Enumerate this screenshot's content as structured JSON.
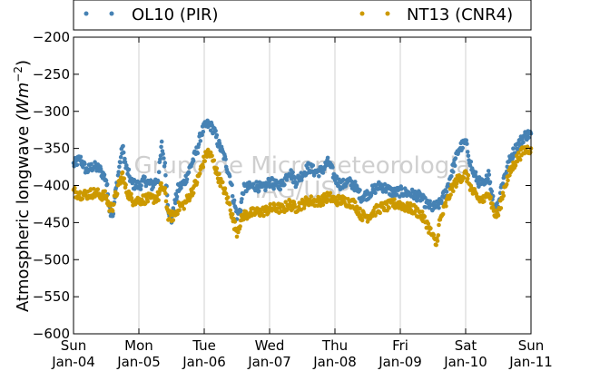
{
  "chart_data": {
    "type": "scatter",
    "ylabel": "Atmospheric longwave",
    "ylabel_unit": "(Wm",
    "ylabel_exp": "−2",
    "ylabel_close": ")",
    "ylim": [
      -600,
      -200
    ],
    "yticks": [
      -200,
      -250,
      -300,
      -350,
      -400,
      -450,
      -500,
      -550,
      -600
    ],
    "yticks_labels": [
      "−200",
      "−250",
      "−300",
      "−350",
      "−400",
      "−450",
      "−500",
      "−550",
      "−600"
    ],
    "xlim": [
      0,
      7
    ],
    "xticks": [
      {
        "x": 0,
        "day": "Sun",
        "date": "Jan-04"
      },
      {
        "x": 1,
        "day": "Mon",
        "date": "Jan-05"
      },
      {
        "x": 2,
        "day": "Tue",
        "date": "Jan-06"
      },
      {
        "x": 3,
        "day": "Wed",
        "date": "Jan-07"
      },
      {
        "x": 4,
        "day": "Thu",
        "date": "Jan-08"
      },
      {
        "x": 5,
        "day": "Fri",
        "date": "Jan-09"
      },
      {
        "x": 6,
        "day": "Sat",
        "date": "Jan-10"
      },
      {
        "x": 7,
        "day": "Sun",
        "date": "Jan-11"
      }
    ],
    "grid": "vertical",
    "legend_position": "top",
    "watermark": {
      "line1": "Grupo de Micrometeorologia",
      "line2": "IAG/USP"
    },
    "series": [
      {
        "name": "OL10 (PIR)",
        "color": "#4682b4",
        "points": [
          [
            0.0,
            -372
          ],
          [
            0.1,
            -364
          ],
          [
            0.2,
            -380
          ],
          [
            0.3,
            -374
          ],
          [
            0.4,
            -378
          ],
          [
            0.5,
            -392
          ],
          [
            0.55,
            -430
          ],
          [
            0.6,
            -440
          ],
          [
            0.65,
            -405
          ],
          [
            0.7,
            -375
          ],
          [
            0.75,
            -348
          ],
          [
            0.8,
            -375
          ],
          [
            0.9,
            -398
          ],
          [
            1.0,
            -400
          ],
          [
            1.1,
            -393
          ],
          [
            1.2,
            -400
          ],
          [
            1.3,
            -390
          ],
          [
            1.35,
            -345
          ],
          [
            1.4,
            -375
          ],
          [
            1.45,
            -430
          ],
          [
            1.5,
            -448
          ],
          [
            1.55,
            -425
          ],
          [
            1.6,
            -405
          ],
          [
            1.7,
            -395
          ],
          [
            1.8,
            -372
          ],
          [
            1.9,
            -350
          ],
          [
            1.95,
            -330
          ],
          [
            2.0,
            -322
          ],
          [
            2.05,
            -318
          ],
          [
            2.1,
            -320
          ],
          [
            2.15,
            -325
          ],
          [
            2.2,
            -340
          ],
          [
            2.3,
            -360
          ],
          [
            2.4,
            -390
          ],
          [
            2.45,
            -420
          ],
          [
            2.5,
            -440
          ],
          [
            2.55,
            -433
          ],
          [
            2.6,
            -405
          ],
          [
            2.7,
            -402
          ],
          [
            2.8,
            -400
          ],
          [
            2.9,
            -405
          ],
          [
            3.0,
            -395
          ],
          [
            3.1,
            -400
          ],
          [
            3.2,
            -398
          ],
          [
            3.3,
            -380
          ],
          [
            3.4,
            -395
          ],
          [
            3.5,
            -385
          ],
          [
            3.6,
            -375
          ],
          [
            3.7,
            -382
          ],
          [
            3.8,
            -380
          ],
          [
            3.9,
            -368
          ],
          [
            4.0,
            -390
          ],
          [
            4.1,
            -400
          ],
          [
            4.2,
            -395
          ],
          [
            4.3,
            -400
          ],
          [
            4.4,
            -415
          ],
          [
            4.5,
            -412
          ],
          [
            4.6,
            -405
          ],
          [
            4.7,
            -400
          ],
          [
            4.8,
            -405
          ],
          [
            4.9,
            -410
          ],
          [
            5.0,
            -408
          ],
          [
            5.1,
            -410
          ],
          [
            5.2,
            -412
          ],
          [
            5.3,
            -415
          ],
          [
            5.4,
            -425
          ],
          [
            5.5,
            -430
          ],
          [
            5.6,
            -425
          ],
          [
            5.7,
            -408
          ],
          [
            5.8,
            -378
          ],
          [
            5.9,
            -350
          ],
          [
            6.0,
            -342
          ],
          [
            6.05,
            -360
          ],
          [
            6.1,
            -380
          ],
          [
            6.2,
            -395
          ],
          [
            6.3,
            -400
          ],
          [
            6.35,
            -380
          ],
          [
            6.4,
            -412
          ],
          [
            6.45,
            -430
          ],
          [
            6.5,
            -425
          ],
          [
            6.55,
            -400
          ],
          [
            6.6,
            -385
          ],
          [
            6.7,
            -360
          ],
          [
            6.8,
            -345
          ],
          [
            6.9,
            -333
          ],
          [
            7.0,
            -330
          ]
        ]
      },
      {
        "name": "NT13 (CNR4)",
        "color": "#cc9900",
        "points": [
          [
            0.0,
            -408
          ],
          [
            0.1,
            -412
          ],
          [
            0.2,
            -412
          ],
          [
            0.3,
            -410
          ],
          [
            0.4,
            -412
          ],
          [
            0.5,
            -415
          ],
          [
            0.55,
            -430
          ],
          [
            0.6,
            -428
          ],
          [
            0.65,
            -412
          ],
          [
            0.7,
            -398
          ],
          [
            0.75,
            -385
          ],
          [
            0.8,
            -405
          ],
          [
            0.9,
            -420
          ],
          [
            1.0,
            -420
          ],
          [
            1.1,
            -418
          ],
          [
            1.2,
            -418
          ],
          [
            1.3,
            -415
          ],
          [
            1.35,
            -400
          ],
          [
            1.4,
            -410
          ],
          [
            1.45,
            -440
          ],
          [
            1.5,
            -442
          ],
          [
            1.55,
            -440
          ],
          [
            1.6,
            -430
          ],
          [
            1.7,
            -425
          ],
          [
            1.8,
            -410
          ],
          [
            1.9,
            -392
          ],
          [
            1.95,
            -378
          ],
          [
            2.0,
            -365
          ],
          [
            2.05,
            -355
          ],
          [
            2.1,
            -360
          ],
          [
            2.15,
            -370
          ],
          [
            2.2,
            -385
          ],
          [
            2.3,
            -405
          ],
          [
            2.4,
            -430
          ],
          [
            2.45,
            -450
          ],
          [
            2.5,
            -462
          ],
          [
            2.55,
            -450
          ],
          [
            2.6,
            -440
          ],
          [
            2.7,
            -438
          ],
          [
            2.8,
            -436
          ],
          [
            2.9,
            -435
          ],
          [
            3.0,
            -432
          ],
          [
            3.1,
            -430
          ],
          [
            3.2,
            -432
          ],
          [
            3.3,
            -425
          ],
          [
            3.4,
            -430
          ],
          [
            3.5,
            -425
          ],
          [
            3.6,
            -420
          ],
          [
            3.7,
            -422
          ],
          [
            3.8,
            -420
          ],
          [
            3.9,
            -415
          ],
          [
            4.0,
            -420
          ],
          [
            4.1,
            -420
          ],
          [
            4.2,
            -422
          ],
          [
            4.3,
            -425
          ],
          [
            4.4,
            -440
          ],
          [
            4.5,
            -442
          ],
          [
            4.6,
            -435
          ],
          [
            4.7,
            -430
          ],
          [
            4.8,
            -428
          ],
          [
            4.9,
            -425
          ],
          [
            5.0,
            -425
          ],
          [
            5.1,
            -430
          ],
          [
            5.2,
            -432
          ],
          [
            5.3,
            -438
          ],
          [
            5.4,
            -450
          ],
          [
            5.5,
            -470
          ],
          [
            5.55,
            -480
          ],
          [
            5.6,
            -450
          ],
          [
            5.7,
            -425
          ],
          [
            5.8,
            -402
          ],
          [
            5.9,
            -390
          ],
          [
            6.0,
            -385
          ],
          [
            6.05,
            -395
          ],
          [
            6.1,
            -408
          ],
          [
            6.2,
            -418
          ],
          [
            6.3,
            -420
          ],
          [
            6.35,
            -405
          ],
          [
            6.4,
            -425
          ],
          [
            6.45,
            -440
          ],
          [
            6.5,
            -438
          ],
          [
            6.55,
            -420
          ],
          [
            6.6,
            -400
          ],
          [
            6.7,
            -378
          ],
          [
            6.8,
            -362
          ],
          [
            6.9,
            -352
          ],
          [
            7.0,
            -350
          ]
        ]
      }
    ]
  }
}
